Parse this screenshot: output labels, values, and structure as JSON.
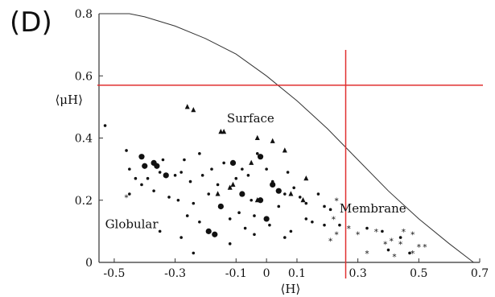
{
  "panel_label": "(D)",
  "chart_data": {
    "type": "scatter",
    "title": "",
    "xlabel": "⟨H⟩",
    "ylabel": "⟨μH⟩",
    "xlim": [
      -0.55,
      0.7
    ],
    "ylim": [
      0,
      0.8
    ],
    "x_ticks": [
      {
        "value": -0.5,
        "label": "-0.5"
      },
      {
        "value": -0.3,
        "label": "-0.3"
      },
      {
        "value": -0.1,
        "label": "-0.1"
      },
      {
        "value": 0,
        "label": "0"
      },
      {
        "value": 0.1,
        "label": "0.1"
      },
      {
        "value": 0.3,
        "label": "0.3"
      },
      {
        "value": 0.5,
        "label": "0.5"
      },
      {
        "value": 0.7,
        "label": "0.7"
      }
    ],
    "y_ticks": [
      {
        "value": 0,
        "label": "0"
      },
      {
        "value": 0.2,
        "label": "0.2"
      },
      {
        "value": 0.4,
        "label": "0.4"
      },
      {
        "value": 0.6,
        "label": "0.6"
      },
      {
        "value": 0.8,
        "label": "0.8"
      }
    ],
    "annotations": [
      {
        "text": "Surface",
        "x": -0.13,
        "y": 0.45
      },
      {
        "text": "Globular",
        "x": -0.53,
        "y": 0.11
      },
      {
        "text": "Membrane",
        "x": 0.24,
        "y": 0.16
      }
    ],
    "boundary_curve": [
      [
        -0.55,
        0.8
      ],
      [
        -0.45,
        0.8
      ],
      [
        -0.4,
        0.79
      ],
      [
        -0.3,
        0.76
      ],
      [
        -0.2,
        0.72
      ],
      [
        -0.1,
        0.67
      ],
      [
        0,
        0.6
      ],
      [
        0.1,
        0.52
      ],
      [
        0.2,
        0.43
      ],
      [
        0.3,
        0.33
      ],
      [
        0.4,
        0.23
      ],
      [
        0.5,
        0.14
      ],
      [
        0.6,
        0.06
      ],
      [
        0.68,
        0
      ]
    ],
    "reference_lines": {
      "horizontal_y": 0.57,
      "vertical_x": 0.26,
      "color": "#e03030"
    },
    "series": [
      {
        "marker": "circle-large",
        "points": [
          [
            -0.41,
            0.34
          ],
          [
            -0.37,
            0.32
          ],
          [
            -0.36,
            0.31
          ],
          [
            -0.4,
            0.31
          ],
          [
            -0.33,
            0.28
          ],
          [
            -0.11,
            0.32
          ],
          [
            -0.02,
            0.34
          ],
          [
            0.02,
            0.25
          ],
          [
            -0.08,
            0.22
          ],
          [
            -0.15,
            0.18
          ],
          [
            -0.02,
            0.2
          ],
          [
            0.0,
            0.14
          ],
          [
            -0.19,
            0.1
          ],
          [
            0.04,
            0.23
          ],
          [
            -0.17,
            0.09
          ]
        ]
      },
      {
        "marker": "circle-small",
        "points": [
          [
            -0.53,
            0.44
          ],
          [
            -0.46,
            0.36
          ],
          [
            -0.45,
            0.3
          ],
          [
            -0.43,
            0.27
          ],
          [
            -0.41,
            0.25
          ],
          [
            -0.39,
            0.27
          ],
          [
            -0.37,
            0.23
          ],
          [
            -0.35,
            0.29
          ],
          [
            -0.34,
            0.33
          ],
          [
            -0.32,
            0.21
          ],
          [
            -0.3,
            0.28
          ],
          [
            -0.28,
            0.29
          ],
          [
            -0.27,
            0.33
          ],
          [
            -0.25,
            0.26
          ],
          [
            -0.24,
            0.19
          ],
          [
            -0.22,
            0.35
          ],
          [
            -0.21,
            0.28
          ],
          [
            -0.19,
            0.22
          ],
          [
            -0.18,
            0.3
          ],
          [
            -0.16,
            0.25
          ],
          [
            -0.14,
            0.32
          ],
          [
            -0.12,
            0.24
          ],
          [
            -0.1,
            0.27
          ],
          [
            -0.08,
            0.3
          ],
          [
            -0.06,
            0.28
          ],
          [
            -0.05,
            0.2
          ],
          [
            -0.04,
            0.15
          ],
          [
            -0.03,
            0.35
          ],
          [
            0.0,
            0.3
          ],
          [
            0.02,
            0.26
          ],
          [
            0.04,
            0.18
          ],
          [
            0.06,
            0.22
          ],
          [
            0.07,
            0.29
          ],
          [
            0.09,
            0.24
          ],
          [
            0.11,
            0.21
          ],
          [
            0.13,
            0.19
          ],
          [
            0.15,
            0.13
          ],
          [
            0.17,
            0.22
          ],
          [
            0.19,
            0.18
          ],
          [
            0.21,
            0.17
          ],
          [
            -0.09,
            0.16
          ],
          [
            -0.12,
            0.14
          ],
          [
            -0.22,
            0.13
          ],
          [
            -0.26,
            0.15
          ],
          [
            -0.29,
            0.2
          ],
          [
            -0.35,
            0.1
          ],
          [
            -0.28,
            0.08
          ],
          [
            -0.12,
            0.06
          ],
          [
            0.01,
            0.12
          ],
          [
            0.08,
            0.1
          ],
          [
            0.13,
            0.14
          ],
          [
            -0.07,
            0.11
          ],
          [
            0.24,
            0.12
          ],
          [
            0.19,
            0.12
          ],
          [
            0.33,
            0.11
          ],
          [
            0.38,
            0.1
          ],
          [
            0.44,
            0.08
          ],
          [
            0.4,
            0.04
          ],
          [
            0.47,
            0.03
          ],
          [
            -0.45,
            0.22
          ],
          [
            0.06,
            0.08
          ],
          [
            -0.04,
            0.09
          ],
          [
            -0.24,
            0.03
          ]
        ]
      },
      {
        "marker": "triangle",
        "points": [
          [
            -0.26,
            0.5
          ],
          [
            -0.24,
            0.49
          ],
          [
            -0.15,
            0.42
          ],
          [
            -0.14,
            0.42
          ],
          [
            -0.03,
            0.4
          ],
          [
            0.02,
            0.39
          ],
          [
            0.06,
            0.36
          ],
          [
            -0.05,
            0.32
          ],
          [
            0.13,
            0.27
          ],
          [
            -0.12,
            0.24
          ],
          [
            -0.11,
            0.25
          ],
          [
            -0.16,
            0.22
          ],
          [
            -0.03,
            0.2
          ],
          [
            0.08,
            0.22
          ],
          [
            0.12,
            0.2
          ]
        ]
      },
      {
        "marker": "star",
        "points": [
          [
            0.23,
            0.2
          ],
          [
            0.22,
            0.14
          ],
          [
            0.23,
            0.09
          ],
          [
            0.21,
            0.07
          ],
          [
            0.3,
            0.09
          ],
          [
            0.36,
            0.1
          ],
          [
            0.41,
            0.07
          ],
          [
            0.44,
            0.06
          ],
          [
            0.48,
            0.09
          ],
          [
            0.5,
            0.05
          ],
          [
            0.48,
            0.03
          ],
          [
            0.42,
            0.02
          ],
          [
            0.39,
            0.06
          ],
          [
            0.33,
            0.03
          ],
          [
            0.27,
            0.11
          ],
          [
            0.52,
            0.05
          ],
          [
            0.45,
            0.1
          ],
          [
            -0.46,
            0.21
          ]
        ]
      }
    ]
  }
}
